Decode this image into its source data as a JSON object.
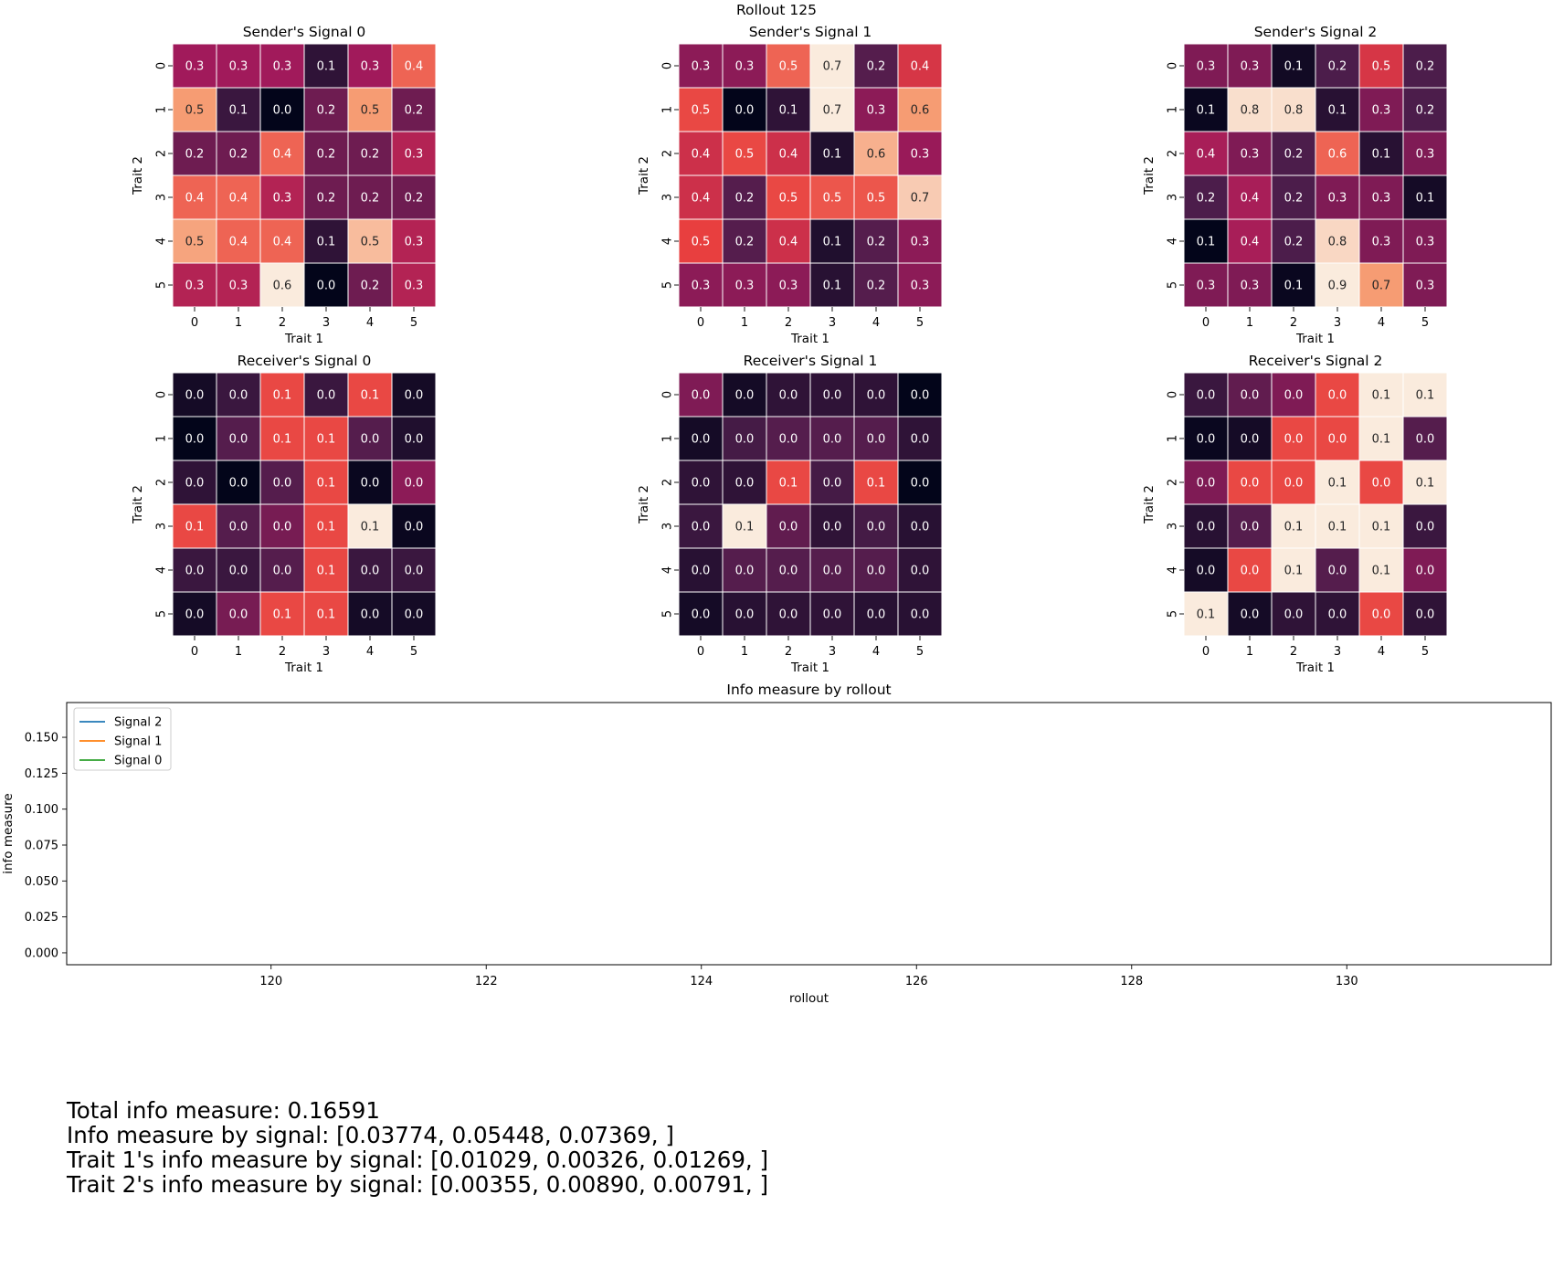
{
  "figure": {
    "title": "Rollout 125"
  },
  "heatmaps": {
    "type": "heatmap",
    "x_label": "Trait 1",
    "y_label": "Trait 2",
    "x_ticks": [
      "0",
      "1",
      "2",
      "3",
      "4",
      "5"
    ],
    "y_ticks": [
      "0",
      "1",
      "2",
      "3",
      "4",
      "5"
    ],
    "panels": [
      {
        "title": "Sender's Signal 0",
        "row": 0,
        "col": 0,
        "values": [
          [
            0.3,
            0.3,
            0.3,
            0.1,
            0.3,
            0.4
          ],
          [
            0.5,
            0.1,
            0.0,
            0.2,
            0.5,
            0.2
          ],
          [
            0.2,
            0.2,
            0.4,
            0.2,
            0.2,
            0.3
          ],
          [
            0.4,
            0.4,
            0.3,
            0.2,
            0.2,
            0.2
          ],
          [
            0.5,
            0.4,
            0.4,
            0.1,
            0.5,
            0.3
          ],
          [
            0.3,
            0.3,
            0.6,
            0.0,
            0.2,
            0.3
          ]
        ],
        "levels": [
          [
            0.4,
            0.4,
            0.4,
            0.12,
            0.4,
            0.68
          ],
          [
            0.8,
            0.15,
            0.0,
            0.28,
            0.8,
            0.28
          ],
          [
            0.28,
            0.28,
            0.68,
            0.28,
            0.28,
            0.45
          ],
          [
            0.68,
            0.68,
            0.45,
            0.28,
            0.28,
            0.28
          ],
          [
            0.82,
            0.68,
            0.68,
            0.12,
            0.88,
            0.45
          ],
          [
            0.45,
            0.45,
            1.0,
            0.0,
            0.28,
            0.45
          ]
        ]
      },
      {
        "title": "Sender's Signal 1",
        "row": 0,
        "col": 1,
        "values": [
          [
            0.3,
            0.3,
            0.5,
            0.7,
            0.2,
            0.4
          ],
          [
            0.5,
            0.0,
            0.1,
            0.7,
            0.3,
            0.6
          ],
          [
            0.4,
            0.5,
            0.4,
            0.1,
            0.6,
            0.3
          ],
          [
            0.4,
            0.2,
            0.5,
            0.5,
            0.5,
            0.7
          ],
          [
            0.5,
            0.2,
            0.4,
            0.1,
            0.2,
            0.3
          ],
          [
            0.3,
            0.3,
            0.3,
            0.1,
            0.2,
            0.3
          ]
        ],
        "levels": [
          [
            0.35,
            0.35,
            0.68,
            1.0,
            0.22,
            0.55
          ],
          [
            0.62,
            0.0,
            0.12,
            1.0,
            0.35,
            0.8
          ],
          [
            0.52,
            0.62,
            0.52,
            0.08,
            0.85,
            0.38
          ],
          [
            0.52,
            0.22,
            0.62,
            0.65,
            0.65,
            0.92
          ],
          [
            0.6,
            0.22,
            0.52,
            0.08,
            0.22,
            0.35
          ],
          [
            0.35,
            0.35,
            0.35,
            0.1,
            0.22,
            0.35
          ]
        ]
      },
      {
        "title": "Sender's Signal 2",
        "row": 0,
        "col": 2,
        "values": [
          [
            0.3,
            0.3,
            0.1,
            0.2,
            0.5,
            0.2
          ],
          [
            0.1,
            0.8,
            0.8,
            0.1,
            0.3,
            0.2
          ],
          [
            0.4,
            0.3,
            0.2,
            0.6,
            0.1,
            0.3
          ],
          [
            0.2,
            0.4,
            0.2,
            0.3,
            0.3,
            0.1
          ],
          [
            0.1,
            0.4,
            0.2,
            0.8,
            0.3,
            0.3
          ],
          [
            0.3,
            0.3,
            0.1,
            0.9,
            0.7,
            0.3
          ]
        ],
        "levels": [
          [
            0.32,
            0.32,
            0.04,
            0.2,
            0.55,
            0.2
          ],
          [
            0.02,
            0.97,
            0.97,
            0.1,
            0.32,
            0.2
          ],
          [
            0.42,
            0.32,
            0.2,
            0.68,
            0.1,
            0.32
          ],
          [
            0.2,
            0.42,
            0.2,
            0.32,
            0.32,
            0.05
          ],
          [
            0.0,
            0.42,
            0.2,
            0.95,
            0.32,
            0.32
          ],
          [
            0.32,
            0.32,
            0.02,
            1.0,
            0.8,
            0.32
          ]
        ]
      },
      {
        "title": "Receiver's Signal 0",
        "row": 1,
        "col": 0,
        "values": [
          [
            0.0,
            0.0,
            0.1,
            0.0,
            0.1,
            0.0
          ],
          [
            0.0,
            0.0,
            0.1,
            0.1,
            0.0,
            0.0
          ],
          [
            0.0,
            0.0,
            0.0,
            0.1,
            0.0,
            0.0
          ],
          [
            0.1,
            0.0,
            0.0,
            0.1,
            0.1,
            0.0
          ],
          [
            0.0,
            0.0,
            0.0,
            0.1,
            0.0,
            0.0
          ],
          [
            0.0,
            0.0,
            0.1,
            0.1,
            0.0,
            0.0
          ]
        ],
        "levels": [
          [
            0.05,
            0.15,
            0.62,
            0.15,
            0.62,
            0.05
          ],
          [
            0.0,
            0.22,
            0.62,
            0.62,
            0.22,
            0.08
          ],
          [
            0.12,
            0.0,
            0.22,
            0.62,
            0.02,
            0.35
          ],
          [
            0.62,
            0.22,
            0.3,
            0.62,
            1.0,
            0.02
          ],
          [
            0.15,
            0.15,
            0.22,
            0.62,
            0.15,
            0.15
          ],
          [
            0.05,
            0.3,
            0.62,
            0.62,
            0.05,
            0.05
          ]
        ]
      },
      {
        "title": "Receiver's Signal 1",
        "row": 1,
        "col": 1,
        "values": [
          [
            0.0,
            0.0,
            0.0,
            0.0,
            0.0,
            0.0
          ],
          [
            0.0,
            0.0,
            0.0,
            0.0,
            0.0,
            0.0
          ],
          [
            0.0,
            0.0,
            0.1,
            0.0,
            0.1,
            0.0
          ],
          [
            0.0,
            0.1,
            0.0,
            0.0,
            0.0,
            0.0
          ],
          [
            0.0,
            0.0,
            0.0,
            0.0,
            0.0,
            0.0
          ],
          [
            0.0,
            0.0,
            0.0,
            0.0,
            0.0,
            0.0
          ]
        ],
        "levels": [
          [
            0.32,
            0.05,
            0.12,
            0.12,
            0.12,
            0.0
          ],
          [
            0.05,
            0.18,
            0.22,
            0.22,
            0.22,
            0.12
          ],
          [
            0.12,
            0.12,
            0.62,
            0.18,
            0.62,
            0.0
          ],
          [
            0.15,
            1.0,
            0.25,
            0.12,
            0.18,
            0.1
          ],
          [
            0.1,
            0.22,
            0.22,
            0.22,
            0.22,
            0.12
          ],
          [
            0.05,
            0.1,
            0.12,
            0.12,
            0.1,
            0.1
          ]
        ]
      },
      {
        "title": "Receiver's Signal 2",
        "row": 1,
        "col": 2,
        "values": [
          [
            0.0,
            0.0,
            0.0,
            0.0,
            0.1,
            0.1
          ],
          [
            0.0,
            0.0,
            0.0,
            0.0,
            0.1,
            0.0
          ],
          [
            0.0,
            0.0,
            0.0,
            0.1,
            0.0,
            0.1
          ],
          [
            0.0,
            0.0,
            0.1,
            0.1,
            0.1,
            0.0
          ],
          [
            0.0,
            0.0,
            0.1,
            0.0,
            0.1,
            0.0
          ],
          [
            0.1,
            0.0,
            0.0,
            0.0,
            0.0,
            0.0
          ]
        ],
        "levels": [
          [
            0.15,
            0.25,
            0.32,
            0.62,
            1.0,
            1.0
          ],
          [
            0.02,
            0.05,
            0.62,
            0.62,
            1.0,
            0.22
          ],
          [
            0.32,
            0.62,
            0.62,
            1.0,
            0.62,
            1.0
          ],
          [
            0.1,
            0.22,
            1.0,
            1.0,
            1.0,
            0.15
          ],
          [
            0.05,
            0.62,
            1.0,
            0.22,
            1.0,
            0.32
          ],
          [
            1.0,
            0.05,
            0.12,
            0.12,
            0.62,
            0.12
          ]
        ]
      }
    ]
  },
  "line_chart": {
    "type": "line",
    "title": "Info measure by rollout",
    "x_label": "rollout",
    "y_label": "info measure",
    "x_range": [
      118.1,
      131.9
    ],
    "y_range": [
      -0.0083,
      0.1742
    ],
    "x_ticks": [
      "120",
      "122",
      "124",
      "126",
      "128",
      "130"
    ],
    "y_ticks": [
      "0.000",
      "0.025",
      "0.050",
      "0.075",
      "0.100",
      "0.125",
      "0.150"
    ],
    "legend_position": "upper-left",
    "series": [
      {
        "name": "Signal 2",
        "color": "#1f77b4",
        "x": [],
        "y": []
      },
      {
        "name": "Signal 1",
        "color": "#ff7f0e",
        "x": [],
        "y": []
      },
      {
        "name": "Signal 0",
        "color": "#2ca02c",
        "x": [],
        "y": []
      }
    ]
  },
  "summary": {
    "total": "Total info measure: 0.16591",
    "by_signal": "Info measure by signal: [0.03774, 0.05448, 0.07369, ]",
    "trait1": "Trait 1's info measure by signal: [0.01029, 0.00326, 0.01269, ]",
    "trait2": "Trait 2's info measure by signal: [0.00355, 0.00890, 0.00791, ]"
  },
  "colormap": [
    "#03051a",
    "#4c1d4b",
    "#a11a5b",
    "#e83f3f",
    "#f69c73",
    "#faebdd"
  ]
}
